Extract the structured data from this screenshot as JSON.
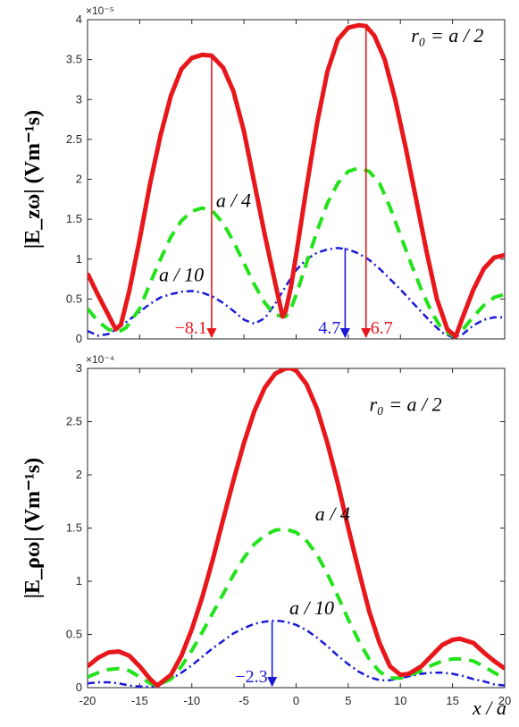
{
  "chart_data": [
    {
      "type": "line",
      "ylabel": "|E_zω| (Vm⁻¹s)",
      "y_multiplier": "×10⁻⁵",
      "ylim": [
        0,
        4
      ],
      "xlim": [
        -20,
        20
      ],
      "yticks": [
        "0",
        "0.5",
        "1",
        "1.5",
        "2",
        "2.5",
        "3",
        "3.5",
        "4"
      ],
      "grid": false,
      "series": [
        {
          "name": "r₀ = a / 2",
          "color": "#e8171c",
          "style": "solid",
          "x": [
            -20,
            -19,
            -18,
            -17.3,
            -16.8,
            -16,
            -15,
            -14,
            -13,
            -12,
            -11,
            -10,
            -9,
            -8.1,
            -7,
            -6,
            -5,
            -4,
            -3,
            -2,
            -1.3,
            -1,
            -0.5,
            0,
            1,
            2,
            3,
            4,
            5,
            6,
            6.7,
            7.5,
            8.5,
            9.5,
            10.5,
            11.5,
            12.5,
            13.5,
            14.5,
            15.3,
            16,
            17,
            18,
            19,
            20
          ],
          "y": [
            0.82,
            0.55,
            0.3,
            0.12,
            0.18,
            0.6,
            1.25,
            1.95,
            2.55,
            3.05,
            3.38,
            3.52,
            3.56,
            3.55,
            3.4,
            3.1,
            2.6,
            1.95,
            1.3,
            0.7,
            0.28,
            0.35,
            0.65,
            1.05,
            1.9,
            2.7,
            3.35,
            3.75,
            3.9,
            3.93,
            3.92,
            3.8,
            3.5,
            3.0,
            2.4,
            1.75,
            1.1,
            0.5,
            0.12,
            0.03,
            0.28,
            0.62,
            0.88,
            1.02,
            1.05
          ]
        },
        {
          "name": "a / 4",
          "color": "#22e31a",
          "style": "dashed",
          "x": [
            -20,
            -19,
            -18,
            -17,
            -16.3,
            -15,
            -14,
            -13,
            -12,
            -11,
            -10,
            -9,
            -8,
            -7,
            -6,
            -5,
            -4,
            -3,
            -2,
            -1,
            -0.5,
            0,
            1,
            2,
            3,
            4,
            5,
            6,
            7,
            8,
            9,
            10,
            11,
            12,
            13,
            14,
            15,
            15.5,
            16,
            17,
            18,
            19,
            20
          ],
          "y": [
            0.38,
            0.22,
            0.12,
            0.09,
            0.14,
            0.38,
            0.7,
            1.0,
            1.28,
            1.48,
            1.6,
            1.64,
            1.6,
            1.45,
            1.22,
            0.95,
            0.68,
            0.45,
            0.3,
            0.28,
            0.38,
            0.55,
            0.95,
            1.35,
            1.7,
            1.95,
            2.1,
            2.14,
            2.1,
            1.95,
            1.65,
            1.3,
            0.95,
            0.62,
            0.33,
            0.12,
            0.04,
            0.05,
            0.12,
            0.28,
            0.42,
            0.52,
            0.56
          ]
        },
        {
          "name": "a / 10",
          "color": "#1a1ad6",
          "style": "dashdot",
          "x": [
            -20,
            -19,
            -18,
            -17,
            -16,
            -15,
            -14,
            -13,
            -12,
            -11,
            -10,
            -9,
            -8,
            -7,
            -6,
            -5,
            -4,
            -3,
            -2,
            -1,
            0,
            1,
            2,
            3,
            4,
            5,
            6,
            7,
            8,
            9,
            10,
            11,
            12,
            13,
            14,
            15,
            16,
            17,
            18,
            19,
            20
          ],
          "y": [
            0.1,
            0.04,
            0.06,
            0.14,
            0.24,
            0.34,
            0.44,
            0.52,
            0.56,
            0.59,
            0.6,
            0.58,
            0.53,
            0.45,
            0.35,
            0.24,
            0.19,
            0.26,
            0.44,
            0.66,
            0.86,
            1.0,
            1.08,
            1.12,
            1.14,
            1.12,
            1.07,
            0.99,
            0.88,
            0.75,
            0.62,
            0.48,
            0.34,
            0.2,
            0.08,
            0.02,
            0.06,
            0.17,
            0.24,
            0.27,
            0.27
          ]
        }
      ],
      "labels": [
        {
          "text": "r₀ = a / 2",
          "x": 14.5,
          "y": 3.72
        },
        {
          "text": "a / 4",
          "x": -6,
          "y": 1.65
        },
        {
          "text": "a / 10",
          "x": -11,
          "y": 0.72
        }
      ],
      "arrows": [
        {
          "text": "−8.1",
          "x": -8.1,
          "y_from": 3.55,
          "color": "#e8171c",
          "text_side": "left"
        },
        {
          "text": "4.7",
          "x": 4.7,
          "y_from": 1.14,
          "color": "#1a1ad6",
          "text_side": "left"
        },
        {
          "text": "6.7",
          "x": 6.7,
          "y_from": 3.92,
          "color": "#e8171c",
          "text_side": "right"
        }
      ]
    },
    {
      "type": "line",
      "ylabel": "|E_ρω| (Vm⁻¹s)",
      "y_multiplier": "×10⁻⁴",
      "ylim": [
        0,
        3
      ],
      "xlim": [
        -20,
        20
      ],
      "xlabel": "x / a",
      "xticks": [
        "-20",
        "-15",
        "-10",
        "-5",
        "0",
        "5",
        "10",
        "15",
        "20"
      ],
      "yticks": [
        "0",
        "0.5",
        "1",
        "1.5",
        "2",
        "2.5",
        "3"
      ],
      "grid": false,
      "series": [
        {
          "name": "r₀ = a / 2",
          "color": "#e8171c",
          "style": "solid",
          "x": [
            -20,
            -19,
            -18,
            -17,
            -16,
            -15,
            -14,
            -13.3,
            -12,
            -11,
            -10,
            -9,
            -8,
            -7,
            -6,
            -5,
            -4,
            -3,
            -2,
            -1,
            -0.5,
            0,
            1,
            2,
            3,
            4,
            5,
            6,
            7,
            8,
            9,
            10,
            10.8,
            12,
            13,
            14,
            15,
            15.7,
            17,
            18,
            19,
            20
          ],
          "y": [
            0.2,
            0.28,
            0.33,
            0.34,
            0.3,
            0.2,
            0.08,
            0.02,
            0.12,
            0.3,
            0.55,
            0.85,
            1.2,
            1.58,
            1.95,
            2.3,
            2.6,
            2.82,
            2.95,
            3.0,
            3.0,
            2.98,
            2.85,
            2.62,
            2.3,
            1.92,
            1.5,
            1.1,
            0.72,
            0.42,
            0.2,
            0.12,
            0.13,
            0.2,
            0.3,
            0.4,
            0.45,
            0.46,
            0.42,
            0.33,
            0.25,
            0.18
          ]
        },
        {
          "name": "a / 4",
          "color": "#22e31a",
          "style": "dashed",
          "x": [
            -20,
            -19,
            -18,
            -17,
            -16,
            -15,
            -14,
            -13.3,
            -12,
            -11,
            -10,
            -9,
            -8,
            -7,
            -6,
            -5,
            -4,
            -3,
            -2,
            -1,
            0,
            1,
            2,
            3,
            4,
            5,
            6,
            7,
            8,
            9,
            10,
            11,
            12,
            13,
            14,
            15,
            16,
            17,
            18,
            19,
            20
          ],
          "y": [
            0.1,
            0.14,
            0.17,
            0.18,
            0.16,
            0.1,
            0.04,
            0.02,
            0.08,
            0.2,
            0.35,
            0.52,
            0.7,
            0.88,
            1.06,
            1.22,
            1.35,
            1.43,
            1.48,
            1.49,
            1.46,
            1.38,
            1.25,
            1.07,
            0.86,
            0.64,
            0.44,
            0.27,
            0.15,
            0.09,
            0.09,
            0.12,
            0.16,
            0.21,
            0.25,
            0.27,
            0.27,
            0.25,
            0.2,
            0.14,
            0.09
          ]
        },
        {
          "name": "a / 10",
          "color": "#1a1ad6",
          "style": "dashdot",
          "x": [
            -20,
            -19,
            -18,
            -17,
            -16,
            -15,
            -14,
            -13,
            -12,
            -11,
            -10,
            -9,
            -8,
            -7,
            -6,
            -5,
            -4,
            -3,
            -2,
            -1,
            0,
            1,
            2,
            3,
            4,
            5,
            6,
            7,
            8,
            9,
            10,
            11,
            12,
            13,
            14,
            15,
            16,
            17,
            18,
            19,
            20
          ],
          "y": [
            0.04,
            0.05,
            0.05,
            0.04,
            0.02,
            0.01,
            0.01,
            0.03,
            0.08,
            0.14,
            0.21,
            0.29,
            0.37,
            0.44,
            0.51,
            0.56,
            0.6,
            0.62,
            0.63,
            0.62,
            0.59,
            0.54,
            0.47,
            0.39,
            0.3,
            0.22,
            0.15,
            0.1,
            0.07,
            0.07,
            0.09,
            0.11,
            0.13,
            0.14,
            0.14,
            0.13,
            0.11,
            0.08,
            0.06,
            0.03,
            0.02
          ]
        }
      ],
      "labels": [
        {
          "text": "r₀ = a / 2",
          "x": 10.5,
          "y": 2.6
        },
        {
          "text": "a / 4",
          "x": 3.5,
          "y": 1.57
        },
        {
          "text": "a / 10",
          "x": 1.5,
          "y": 0.69
        }
      ],
      "arrows": [
        {
          "text": "−2.3",
          "x": -2.3,
          "y_from": 0.62,
          "color": "#1a1ad6",
          "text_side": "left"
        }
      ]
    }
  ]
}
